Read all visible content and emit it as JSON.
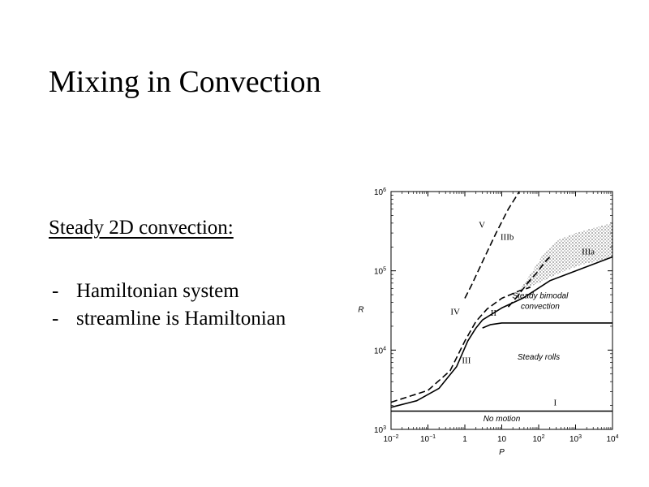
{
  "slide": {
    "title": "Mixing in Convection",
    "subtitle": "Steady 2D convection:",
    "bullets": [
      {
        "dash": "-",
        "text": "Hamiltonian system"
      },
      {
        "dash": "-",
        "text": "streamline is Hamiltonian"
      }
    ]
  },
  "chart_data": {
    "type": "line",
    "xlabel": "P",
    "ylabel": "R",
    "x_scale": "log",
    "y_scale": "log",
    "xlim": [
      0.01,
      10000
    ],
    "ylim": [
      1000,
      1000000
    ],
    "x_ticks": [
      {
        "value": 0.01,
        "base": "10",
        "exp": "−2"
      },
      {
        "value": 0.1,
        "base": "10",
        "exp": "−1"
      },
      {
        "value": 1,
        "base": "1",
        "exp": ""
      },
      {
        "value": 10,
        "base": "10",
        "exp": ""
      },
      {
        "value": 100,
        "base": "10",
        "exp": "2"
      },
      {
        "value": 1000,
        "base": "10",
        "exp": "3"
      },
      {
        "value": 10000,
        "base": "10",
        "exp": "4"
      }
    ],
    "y_ticks": [
      {
        "value": 1000,
        "base": "10",
        "exp": "3"
      },
      {
        "value": 10000,
        "base": "10",
        "exp": "4"
      },
      {
        "value": 100000,
        "base": "10",
        "exp": "5"
      },
      {
        "value": 1000000,
        "base": "10",
        "exp": "6"
      }
    ],
    "series": [
      {
        "style": "solid",
        "points": [
          [
            0.01,
            1700
          ],
          [
            10000,
            1700
          ]
        ]
      },
      {
        "style": "solid",
        "points": [
          [
            0.01,
            1900
          ],
          [
            0.05,
            2300
          ],
          [
            0.2,
            3300
          ],
          [
            0.6,
            6200
          ],
          [
            1.2,
            13000
          ],
          [
            2,
            19000
          ],
          [
            3,
            24000
          ],
          [
            10,
            34000
          ],
          [
            40,
            46000
          ],
          [
            200,
            75000
          ],
          [
            10000,
            150000
          ]
        ]
      },
      {
        "style": "solid",
        "points": [
          [
            3,
            19000
          ],
          [
            5,
            21000
          ],
          [
            10,
            22000
          ],
          [
            100,
            22000
          ],
          [
            10000,
            22000
          ]
        ]
      },
      {
        "style": "dashed",
        "points": [
          [
            0.01,
            2200
          ],
          [
            0.1,
            3100
          ],
          [
            0.4,
            5500
          ],
          [
            1,
            13000
          ],
          [
            2,
            23000
          ],
          [
            4,
            33000
          ],
          [
            10,
            45000
          ],
          [
            30,
            56000
          ],
          [
            60,
            62000
          ]
        ]
      },
      {
        "style": "dashed",
        "points": [
          [
            15,
            35000
          ],
          [
            25,
            46000
          ],
          [
            50,
            70000
          ],
          [
            90,
            95000
          ],
          [
            150,
            130000
          ],
          [
            200,
            150000
          ]
        ]
      },
      {
        "style": "dashed",
        "points": [
          [
            1,
            45000
          ],
          [
            1.5,
            65000
          ],
          [
            3,
            130000
          ],
          [
            7,
            300000
          ],
          [
            15,
            600000
          ],
          [
            30,
            1000000
          ]
        ]
      }
    ],
    "shaded_region": [
      [
        30,
        56000
      ],
      [
        100,
        70000
      ],
      [
        400,
        95000
      ],
      [
        1500,
        120000
      ],
      [
        10000,
        145000
      ],
      [
        10000,
        400000
      ],
      [
        5000,
        370000
      ],
      [
        1000,
        300000
      ],
      [
        300,
        240000
      ],
      [
        120,
        150000
      ],
      [
        50,
        80000
      ]
    ],
    "annotations": [
      {
        "text": "I",
        "x": 280,
        "y": 2000,
        "style": "roman"
      },
      {
        "text": "II",
        "x": 6,
        "y": 27000,
        "style": "roman"
      },
      {
        "text": "III",
        "x": 1.1,
        "y": 6800,
        "style": "roman"
      },
      {
        "text": "IIIa",
        "x": 2200,
        "y": 160000,
        "style": "roman"
      },
      {
        "text": "IIIb",
        "x": 14,
        "y": 245000,
        "style": "roman"
      },
      {
        "text": "IV",
        "x": 0.55,
        "y": 28000,
        "style": "roman"
      },
      {
        "text": "V",
        "x": 2.9,
        "y": 350000,
        "style": "roman"
      },
      {
        "text": "Steady bimodal",
        "x": 110,
        "y": 45000,
        "style": "italic"
      },
      {
        "text": "convection",
        "x": 110,
        "y": 33000,
        "style": "italic"
      },
      {
        "text": "Steady rolls",
        "x": 100,
        "y": 7600,
        "style": "italic"
      },
      {
        "text": "No motion",
        "x": 10,
        "y": 1260,
        "style": "italic"
      }
    ]
  }
}
